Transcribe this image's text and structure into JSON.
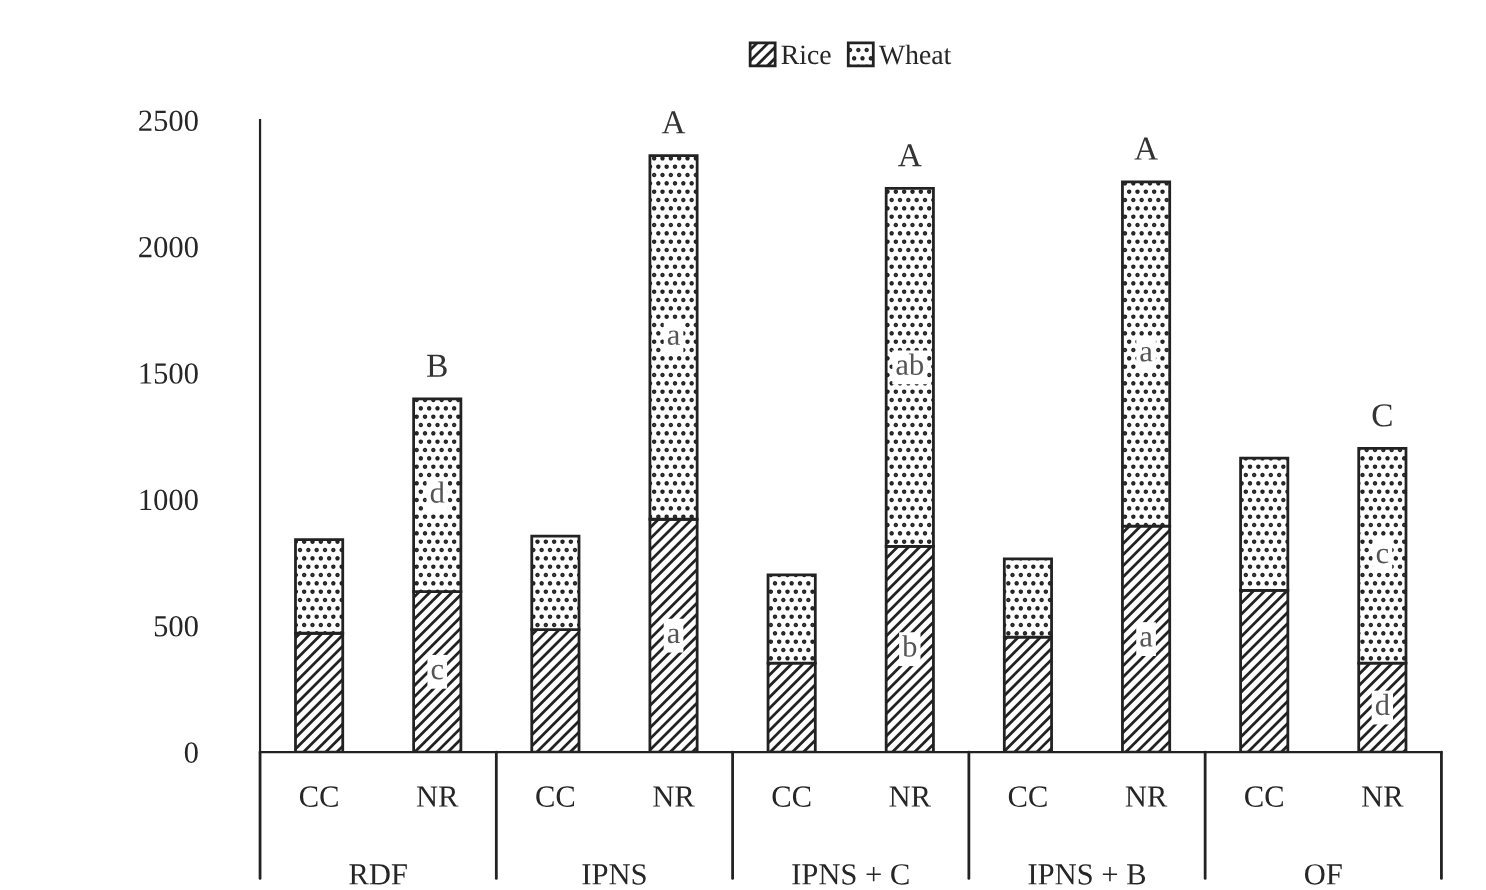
{
  "chart_data": {
    "type": "bar",
    "stacked": true,
    "categories": [
      "CC",
      "NR",
      "CC",
      "NR",
      "CC",
      "NR",
      "CC",
      "NR",
      "CC",
      "NR"
    ],
    "series": [
      {
        "name": "Rice",
        "color": "#222222",
        "values": [
          470,
          635,
          484,
          921,
          352,
          814,
          455,
          894,
          640,
          352
        ],
        "value_labels": [
          null,
          "c",
          null,
          "a",
          null,
          "b",
          null,
          "a",
          null,
          "d"
        ]
      },
      {
        "name": "Wheat",
        "color": "#222222",
        "values": [
          370,
          762,
          370,
          1439,
          349,
          1416,
          309,
          1362,
          523,
          849
        ],
        "value_labels": [
          null,
          "d",
          null,
          "a",
          null,
          "ab",
          null,
          "a",
          null,
          "c"
        ]
      }
    ],
    "totals": [
      null,
      "B",
      null,
      "A",
      null,
      "A",
      null,
      "A",
      null,
      "C"
    ],
    "annotations": [
      "RDF",
      "IPNS",
      "IPNS + C",
      "IPNS + B",
      "OF"
    ],
    "ylim": [
      0,
      2500
    ],
    "yticks": [
      0,
      500,
      1000,
      1500,
      2000,
      2500
    ],
    "grid": false,
    "legend": "top"
  }
}
